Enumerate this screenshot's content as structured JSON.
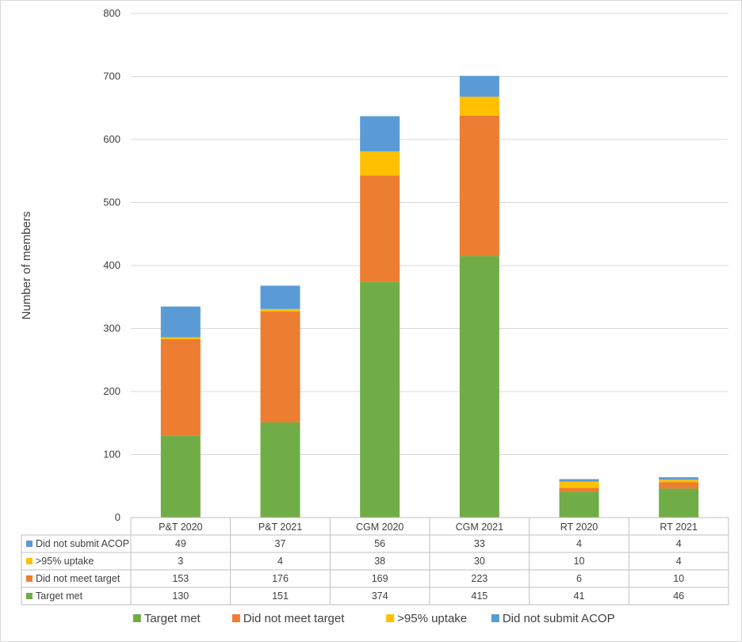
{
  "chart_data": {
    "type": "bar",
    "stacked": true,
    "ylabel": "Number of members",
    "ylim": [
      0,
      800
    ],
    "yticks": [
      0,
      100,
      200,
      300,
      400,
      500,
      600,
      700,
      800
    ],
    "grid": true,
    "legend_position": "bottom",
    "data_table": true,
    "categories": [
      "P&T 2020",
      "P&T 2021",
      "CGM 2020",
      "CGM 2021",
      "RT 2020",
      "RT 2021"
    ],
    "series": [
      {
        "name": "Target met",
        "color": "#70AD47",
        "values": [
          130,
          151,
          374,
          415,
          41,
          46
        ]
      },
      {
        "name": "Did not meet target",
        "color": "#ED7D31",
        "values": [
          153,
          176,
          169,
          223,
          6,
          10
        ]
      },
      {
        "name": ">95% uptake",
        "color": "#FFC000",
        "values": [
          3,
          4,
          38,
          30,
          10,
          4
        ]
      },
      {
        "name": "Did not submit ACOP",
        "color": "#5B9BD5",
        "values": [
          49,
          37,
          56,
          33,
          4,
          4
        ]
      }
    ],
    "table_row_order": [
      3,
      2,
      1,
      0
    ]
  }
}
